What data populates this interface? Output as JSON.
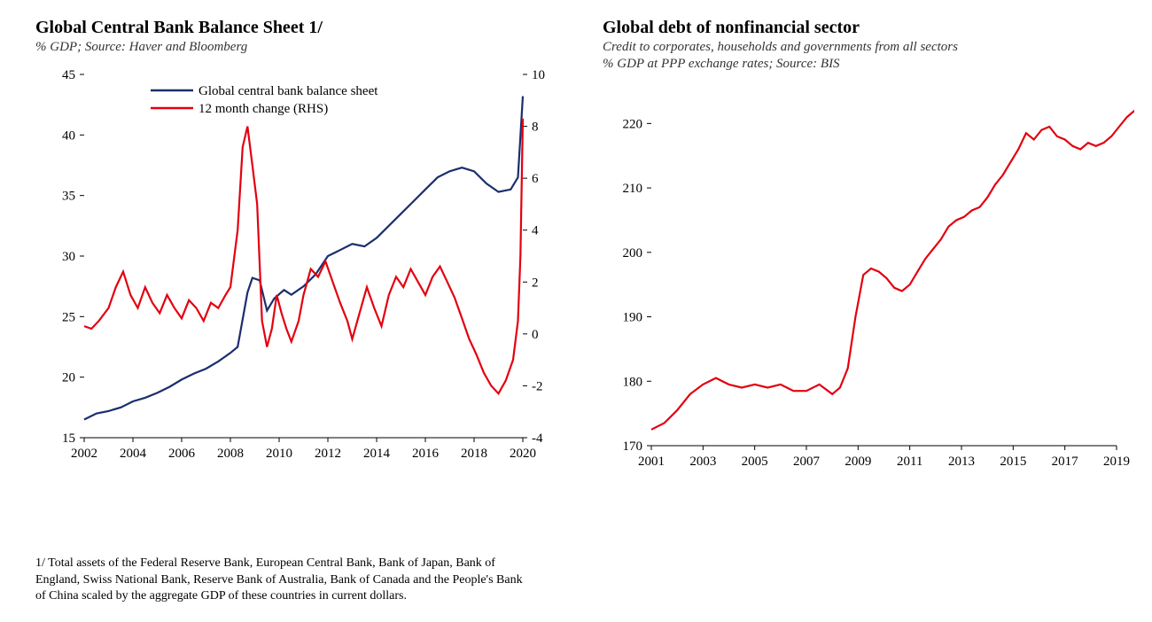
{
  "left": {
    "title": "Global Central Bank Balance Sheet 1/",
    "subtitle": "% GDP; Source: Haver and Bloomberg",
    "footnote": "1/ Total assets of the Federal Reserve Bank, European Central Bank, Bank of Japan, Bank of England, Swiss National Bank, Reserve Bank of Australia, Bank of Canada and the People's Bank of China scaled by the aggregate GDP of these countries in current dollars.",
    "legend": {
      "s1": "Global central bank balance sheet",
      "s2": "12 month change (RHS)"
    },
    "y1": {
      "lim": [
        15,
        45
      ],
      "step": 5
    },
    "y2": {
      "lim": [
        -4,
        10
      ],
      "step": 2
    },
    "x": {
      "lim": [
        2002,
        2020
      ],
      "step": 2
    },
    "colors": {
      "s1": "#1a2e6e",
      "s2": "#e3000f",
      "axis": "#000000",
      "bg": "#ffffff"
    },
    "line_width": 2.2,
    "s1_data": [
      [
        2002.0,
        16.5
      ],
      [
        2002.5,
        17.0
      ],
      [
        2003.0,
        17.2
      ],
      [
        2003.5,
        17.5
      ],
      [
        2004.0,
        18.0
      ],
      [
        2004.5,
        18.3
      ],
      [
        2005.0,
        18.7
      ],
      [
        2005.5,
        19.2
      ],
      [
        2006.0,
        19.8
      ],
      [
        2006.5,
        20.3
      ],
      [
        2007.0,
        20.7
      ],
      [
        2007.5,
        21.3
      ],
      [
        2008.0,
        22.0
      ],
      [
        2008.3,
        22.5
      ],
      [
        2008.7,
        27.0
      ],
      [
        2008.9,
        28.2
      ],
      [
        2009.2,
        28.0
      ],
      [
        2009.5,
        25.5
      ],
      [
        2009.8,
        26.5
      ],
      [
        2010.2,
        27.2
      ],
      [
        2010.5,
        26.8
      ],
      [
        2011.0,
        27.5
      ],
      [
        2011.5,
        28.5
      ],
      [
        2012.0,
        30.0
      ],
      [
        2012.5,
        30.5
      ],
      [
        2013.0,
        31.0
      ],
      [
        2013.5,
        30.8
      ],
      [
        2014.0,
        31.5
      ],
      [
        2014.5,
        32.5
      ],
      [
        2015.0,
        33.5
      ],
      [
        2015.5,
        34.5
      ],
      [
        2016.0,
        35.5
      ],
      [
        2016.5,
        36.5
      ],
      [
        2017.0,
        37.0
      ],
      [
        2017.5,
        37.3
      ],
      [
        2018.0,
        37.0
      ],
      [
        2018.5,
        36.0
      ],
      [
        2019.0,
        35.3
      ],
      [
        2019.5,
        35.5
      ],
      [
        2019.8,
        36.5
      ],
      [
        2020.0,
        43.2
      ]
    ],
    "s2_data": [
      [
        2002.0,
        0.3
      ],
      [
        2002.3,
        0.2
      ],
      [
        2002.6,
        0.5
      ],
      [
        2003.0,
        1.0
      ],
      [
        2003.3,
        1.8
      ],
      [
        2003.6,
        2.4
      ],
      [
        2003.9,
        1.5
      ],
      [
        2004.2,
        1.0
      ],
      [
        2004.5,
        1.8
      ],
      [
        2004.8,
        1.2
      ],
      [
        2005.1,
        0.8
      ],
      [
        2005.4,
        1.5
      ],
      [
        2005.7,
        1.0
      ],
      [
        2006.0,
        0.6
      ],
      [
        2006.3,
        1.3
      ],
      [
        2006.6,
        1.0
      ],
      [
        2006.9,
        0.5
      ],
      [
        2007.2,
        1.2
      ],
      [
        2007.5,
        1.0
      ],
      [
        2007.8,
        1.5
      ],
      [
        2008.0,
        1.8
      ],
      [
        2008.3,
        4.0
      ],
      [
        2008.5,
        7.2
      ],
      [
        2008.7,
        8.0
      ],
      [
        2008.9,
        6.5
      ],
      [
        2009.1,
        5.0
      ],
      [
        2009.3,
        0.5
      ],
      [
        2009.5,
        -0.5
      ],
      [
        2009.7,
        0.2
      ],
      [
        2009.9,
        1.5
      ],
      [
        2010.1,
        0.8
      ],
      [
        2010.3,
        0.2
      ],
      [
        2010.5,
        -0.3
      ],
      [
        2010.8,
        0.5
      ],
      [
        2011.0,
        1.5
      ],
      [
        2011.3,
        2.5
      ],
      [
        2011.6,
        2.2
      ],
      [
        2011.9,
        2.8
      ],
      [
        2012.2,
        2.0
      ],
      [
        2012.5,
        1.2
      ],
      [
        2012.8,
        0.5
      ],
      [
        2013.0,
        -0.2
      ],
      [
        2013.3,
        0.8
      ],
      [
        2013.6,
        1.8
      ],
      [
        2013.9,
        1.0
      ],
      [
        2014.2,
        0.3
      ],
      [
        2014.5,
        1.5
      ],
      [
        2014.8,
        2.2
      ],
      [
        2015.1,
        1.8
      ],
      [
        2015.4,
        2.5
      ],
      [
        2015.7,
        2.0
      ],
      [
        2016.0,
        1.5
      ],
      [
        2016.3,
        2.2
      ],
      [
        2016.6,
        2.6
      ],
      [
        2016.9,
        2.0
      ],
      [
        2017.2,
        1.4
      ],
      [
        2017.5,
        0.6
      ],
      [
        2017.8,
        -0.2
      ],
      [
        2018.1,
        -0.8
      ],
      [
        2018.4,
        -1.5
      ],
      [
        2018.7,
        -2.0
      ],
      [
        2019.0,
        -2.3
      ],
      [
        2019.3,
        -1.8
      ],
      [
        2019.6,
        -1.0
      ],
      [
        2019.8,
        0.5
      ],
      [
        2019.9,
        3.0
      ],
      [
        2020.0,
        8.3
      ]
    ]
  },
  "right": {
    "title": "Global debt of nonfinancial sector",
    "subtitle1": "Credit to corporates, households and governments from all sectors",
    "subtitle2": "% GDP at PPP exchange rates; Source: BIS",
    "y": {
      "lim": [
        170,
        220
      ],
      "step": 10,
      "extra_top_label": "220"
    },
    "x": {
      "lim": [
        2001,
        2019
      ],
      "step": 2
    },
    "colors": {
      "s1": "#e3000f",
      "axis": "#000000",
      "bg": "#ffffff"
    },
    "line_width": 2.5,
    "s1_data": [
      [
        2001.0,
        172.5
      ],
      [
        2001.5,
        173.5
      ],
      [
        2002.0,
        175.5
      ],
      [
        2002.5,
        178.0
      ],
      [
        2003.0,
        179.5
      ],
      [
        2003.5,
        180.5
      ],
      [
        2004.0,
        179.5
      ],
      [
        2004.5,
        179.0
      ],
      [
        2005.0,
        179.5
      ],
      [
        2005.5,
        179.0
      ],
      [
        2006.0,
        179.5
      ],
      [
        2006.5,
        178.5
      ],
      [
        2007.0,
        178.5
      ],
      [
        2007.5,
        179.5
      ],
      [
        2008.0,
        178.0
      ],
      [
        2008.3,
        179.0
      ],
      [
        2008.6,
        182.0
      ],
      [
        2008.9,
        190.0
      ],
      [
        2009.2,
        196.5
      ],
      [
        2009.5,
        197.5
      ],
      [
        2009.8,
        197.0
      ],
      [
        2010.1,
        196.0
      ],
      [
        2010.4,
        194.5
      ],
      [
        2010.7,
        194.0
      ],
      [
        2011.0,
        195.0
      ],
      [
        2011.3,
        197.0
      ],
      [
        2011.6,
        199.0
      ],
      [
        2011.9,
        200.5
      ],
      [
        2012.2,
        202.0
      ],
      [
        2012.5,
        204.0
      ],
      [
        2012.8,
        205.0
      ],
      [
        2013.1,
        205.5
      ],
      [
        2013.4,
        206.5
      ],
      [
        2013.7,
        207.0
      ],
      [
        2014.0,
        208.5
      ],
      [
        2014.3,
        210.5
      ],
      [
        2014.6,
        212.0
      ],
      [
        2014.9,
        214.0
      ],
      [
        2015.2,
        216.0
      ],
      [
        2015.5,
        218.5
      ],
      [
        2015.8,
        217.5
      ],
      [
        2016.1,
        219.0
      ],
      [
        2016.4,
        219.5
      ],
      [
        2016.7,
        218.0
      ],
      [
        2017.0,
        217.5
      ],
      [
        2017.3,
        216.5
      ],
      [
        2017.6,
        216.0
      ],
      [
        2017.9,
        217.0
      ],
      [
        2018.2,
        216.5
      ],
      [
        2018.5,
        217.0
      ],
      [
        2018.8,
        218.0
      ],
      [
        2019.1,
        219.5
      ],
      [
        2019.4,
        221.0
      ],
      [
        2019.7,
        222.0
      ],
      [
        2019.9,
        222.5
      ]
    ]
  }
}
